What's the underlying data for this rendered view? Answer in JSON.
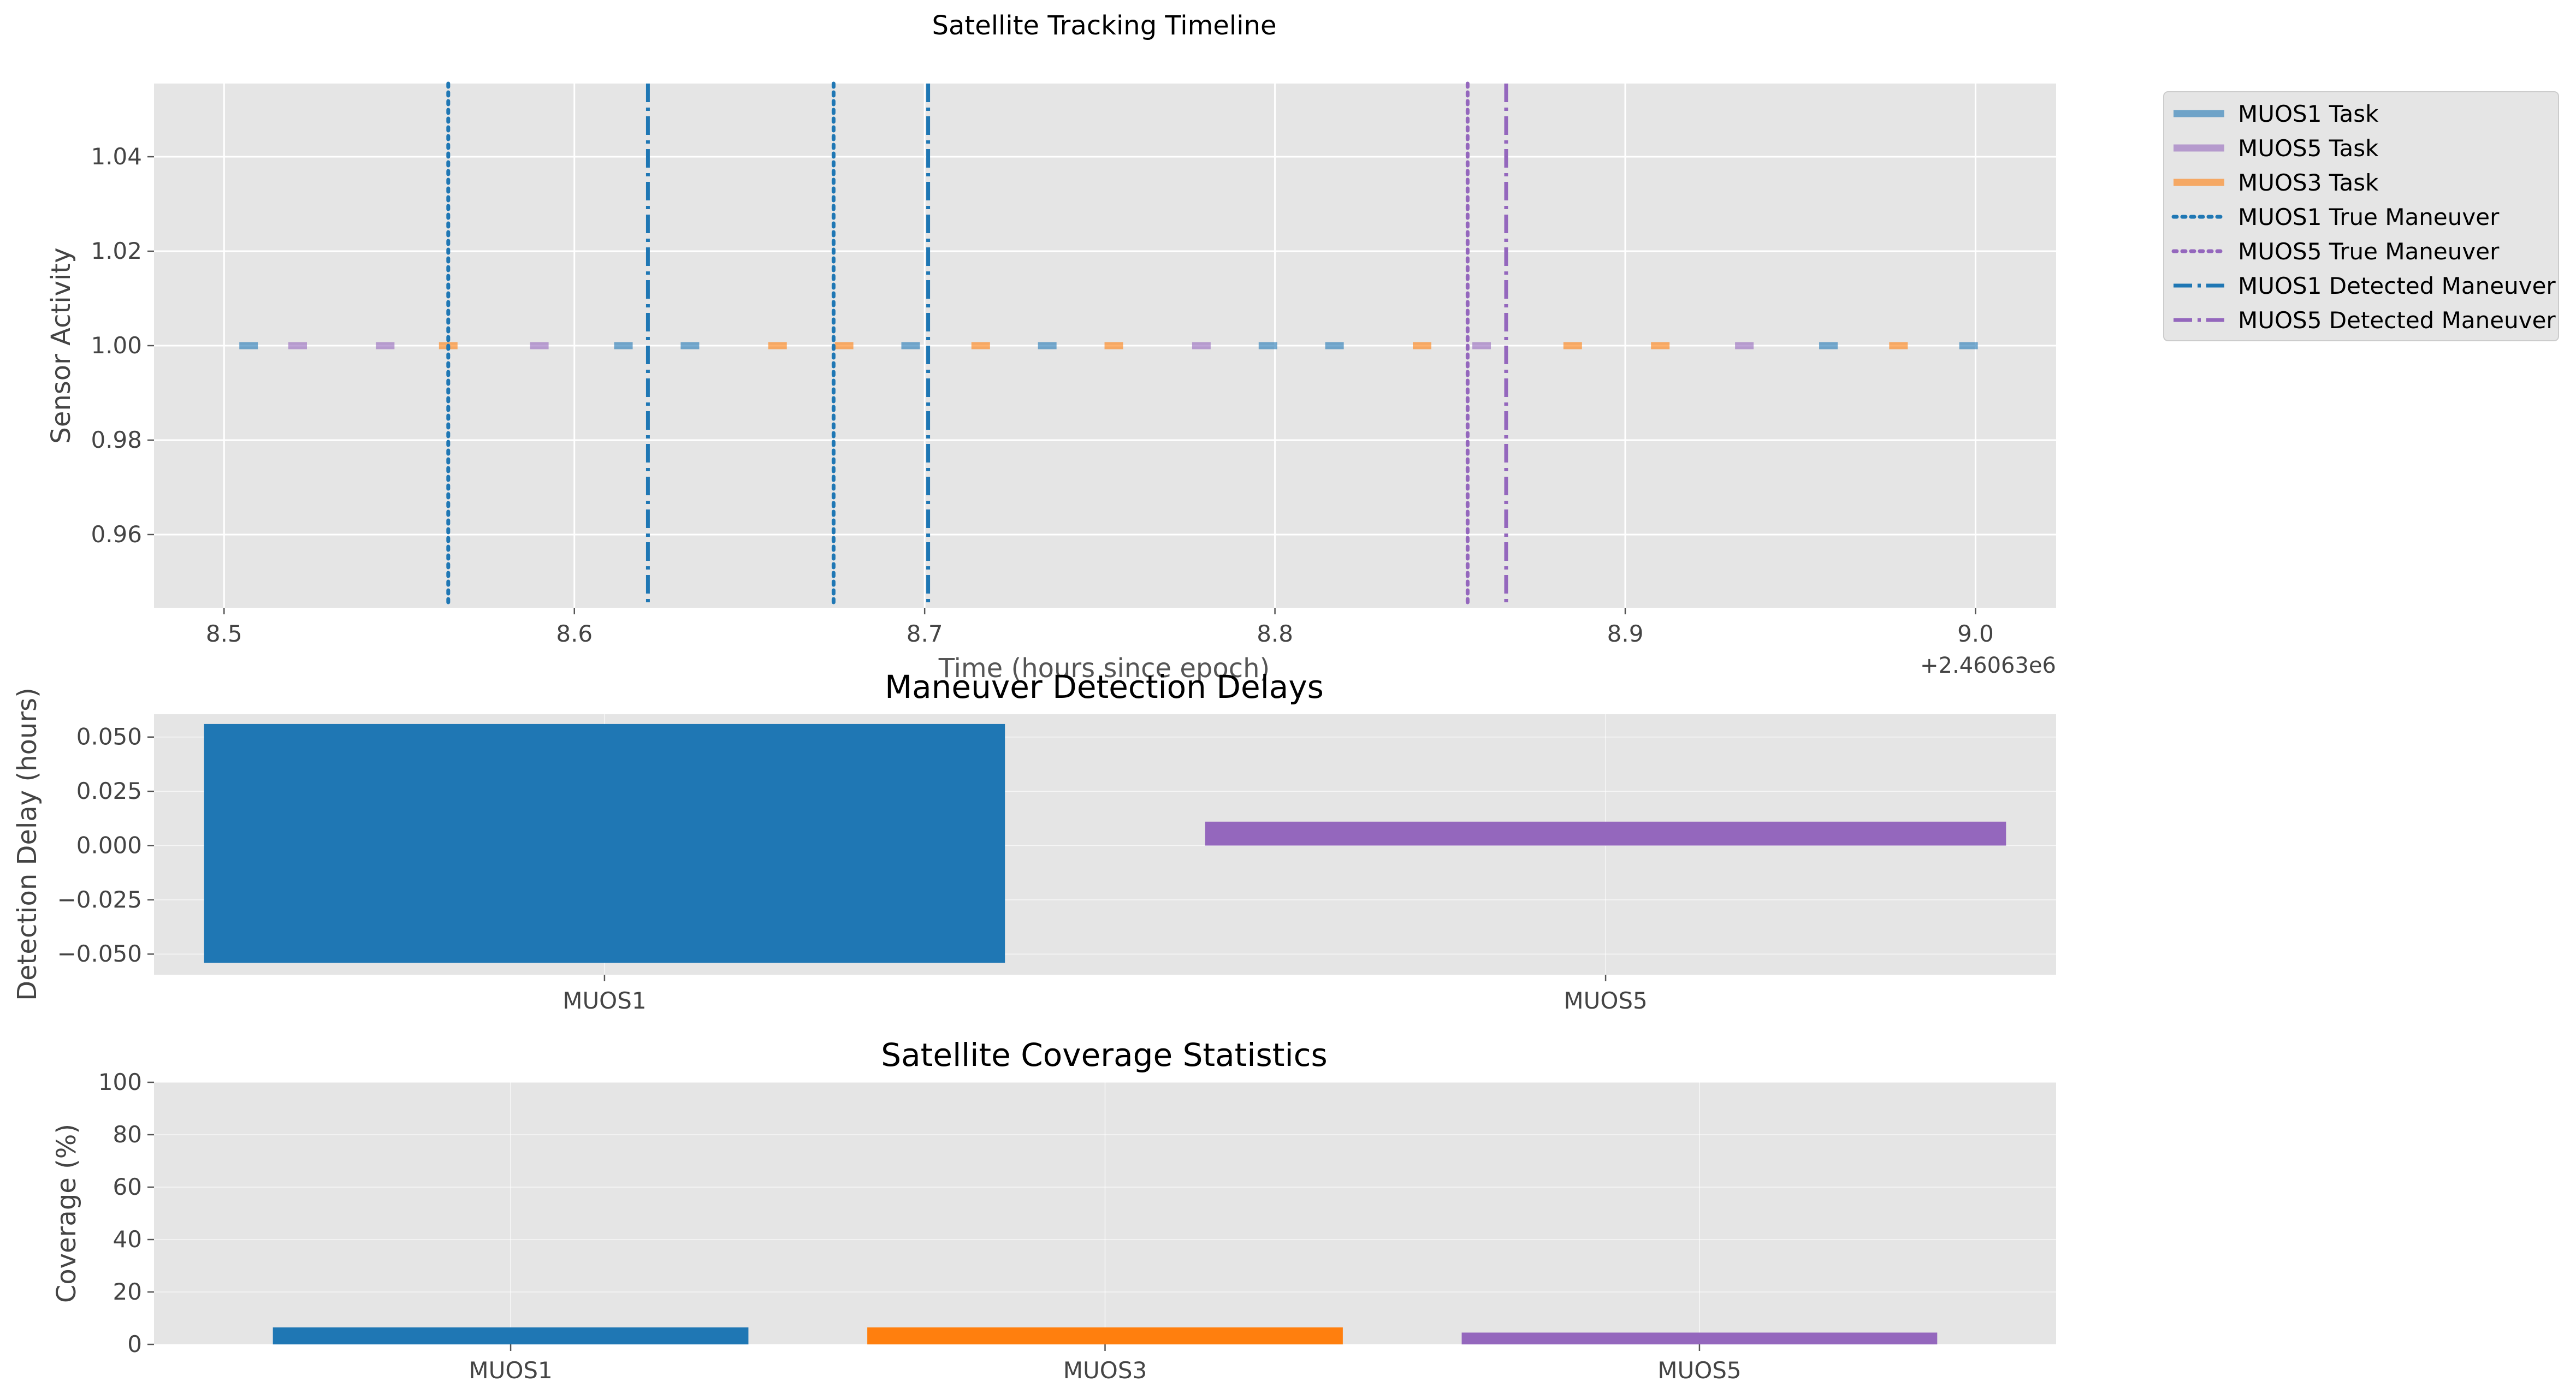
{
  "chart_data": [
    {
      "type": "line",
      "title": "Satellite Tracking Timeline",
      "xlabel": "Time (hours since epoch)",
      "ylabel": "Sensor Activity",
      "x_offset_label": "+2.46063e6",
      "xlim": [
        8.48,
        9.023
      ],
      "ylim": [
        0.9445,
        1.0555
      ],
      "xticks": [
        "8.5",
        "8.6",
        "8.7",
        "8.8",
        "8.9",
        "9.0"
      ],
      "xtick_values": [
        8.5,
        8.6,
        8.7,
        8.8,
        8.9,
        9.0
      ],
      "yticks": [
        "0.96",
        "0.98",
        "1.00",
        "1.02",
        "1.04"
      ],
      "ytick_values": [
        0.96,
        0.98,
        1.0,
        1.02,
        1.04
      ],
      "grid": true,
      "legend_position": "outside-right",
      "series": [
        {
          "name": "MUOS1 Task",
          "color": "#1f77b4",
          "style": "solid",
          "tasks_x": [
            8.507,
            8.614,
            8.633,
            8.696,
            8.735,
            8.798,
            8.817,
            8.958,
            8.998
          ]
        },
        {
          "name": "MUOS5 Task",
          "color": "#9467bd",
          "style": "solid",
          "tasks_x": [
            8.521,
            8.546,
            8.59,
            8.779,
            8.859,
            8.934
          ]
        },
        {
          "name": "MUOS3 Task",
          "color": "#ff7f0e",
          "style": "solid",
          "tasks_x": [
            8.564,
            8.658,
            8.677,
            8.716,
            8.754,
            8.842,
            8.885,
            8.91,
            8.978
          ]
        },
        {
          "name": "MUOS1 True Maneuver",
          "color": "#1f77b4",
          "style": "dotted",
          "vlines_x": [
            8.564,
            8.674
          ]
        },
        {
          "name": "MUOS5 True Maneuver",
          "color": "#9467bd",
          "style": "dotted",
          "vlines_x": [
            8.855
          ]
        },
        {
          "name": "MUOS1 Detected Maneuver",
          "color": "#1f77b4",
          "style": "dashdot",
          "vlines_x": [
            8.621,
            8.701
          ]
        },
        {
          "name": "MUOS5 Detected Maneuver",
          "color": "#9467bd",
          "style": "dashdot",
          "vlines_x": [
            8.866
          ]
        }
      ]
    },
    {
      "type": "bar",
      "title": "Maneuver Detection Delays",
      "xlabel": "",
      "ylabel": "Detection Delay (hours)",
      "categories": [
        "MUOS1",
        "MUOS5"
      ],
      "bar_ranges": [
        [
          -0.054,
          0.056
        ],
        [
          0.0,
          0.011
        ]
      ],
      "colors": [
        "#1f77b4",
        "#9467bd"
      ],
      "ylim": [
        -0.0595,
        0.0605
      ],
      "yticks": [
        "0.050",
        "0.025",
        "0.000",
        "−0.025",
        "−0.050"
      ],
      "ytick_values": [
        0.05,
        0.025,
        0.0,
        -0.025,
        -0.05
      ],
      "grid": true
    },
    {
      "type": "bar",
      "title": "Satellite Coverage Statistics",
      "xlabel": "",
      "ylabel": "Coverage (%)",
      "categories": [
        "MUOS1",
        "MUOS3",
        "MUOS5"
      ],
      "values": [
        6.5,
        6.5,
        4.5
      ],
      "colors": [
        "#1f77b4",
        "#ff7f0e",
        "#9467bd"
      ],
      "ylim": [
        0,
        100
      ],
      "yticks": [
        "0",
        "20",
        "40",
        "60",
        "80",
        "100"
      ],
      "ytick_values": [
        0,
        20,
        40,
        60,
        80,
        100
      ],
      "grid": true
    }
  ]
}
